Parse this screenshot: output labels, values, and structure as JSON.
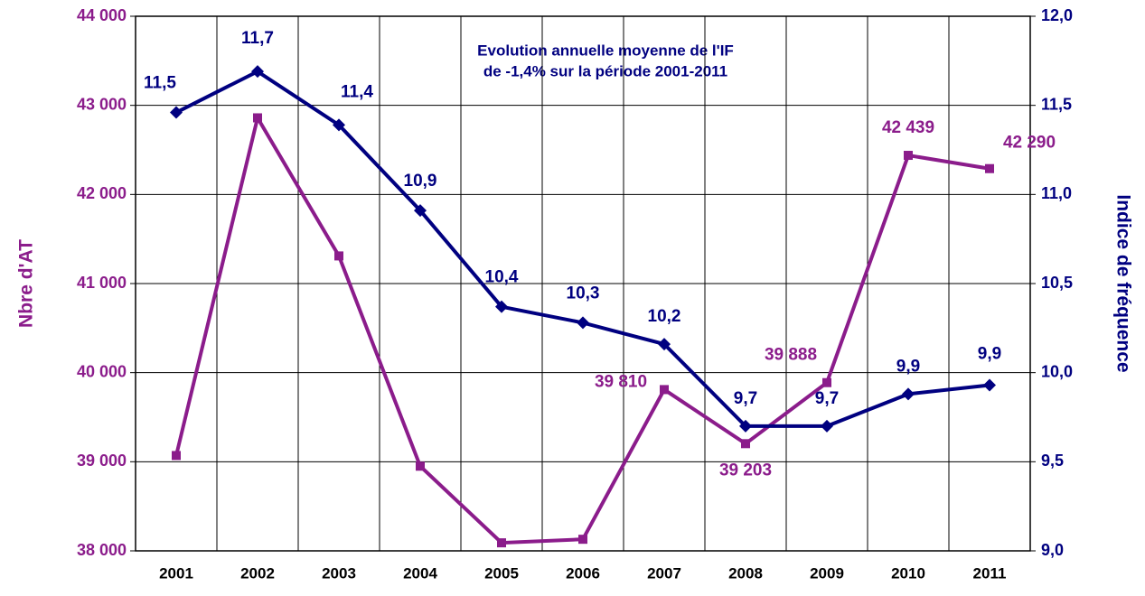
{
  "chart_data": {
    "type": "line",
    "annotation": [
      "Evolution annuelle moyenne de l'IF",
      "de -1,4% sur la période 2001-2011"
    ],
    "ylabel": "Nbre d'AT",
    "y2label": "Indice de fréquence",
    "categories": [
      "2001",
      "2002",
      "2003",
      "2004",
      "2005",
      "2006",
      "2007",
      "2008",
      "2009",
      "2010",
      "2011"
    ],
    "ylim": [
      38000,
      44000
    ],
    "yticks": [
      {
        "value": 38000,
        "label": "38 000"
      },
      {
        "value": 39000,
        "label": "39 000"
      },
      {
        "value": 40000,
        "label": "40 000"
      },
      {
        "value": 41000,
        "label": "41 000"
      },
      {
        "value": 42000,
        "label": "42 000"
      },
      {
        "value": 43000,
        "label": "43 000"
      },
      {
        "value": 44000,
        "label": "44 000"
      }
    ],
    "y2lim": [
      9,
      12
    ],
    "y2ticks": [
      {
        "value": 9,
        "label": "9,0"
      },
      {
        "value": 9.5,
        "label": "9,5"
      },
      {
        "value": 10,
        "label": "10,0"
      },
      {
        "value": 10.5,
        "label": "10,5"
      },
      {
        "value": 11,
        "label": "11,0"
      },
      {
        "value": 11.5,
        "label": "11,5"
      },
      {
        "value": 12,
        "label": "12,0"
      }
    ],
    "grid": true,
    "series": [
      {
        "color": "#8b1c8b",
        "marker": "square",
        "values": [
          39070,
          42860,
          41310,
          38950,
          38090,
          38130,
          39810,
          39203,
          39888,
          42439,
          42290
        ],
        "value_labels": [
          null,
          null,
          null,
          null,
          null,
          null,
          "39 810",
          "39 203",
          "39 888",
          "42 439",
          "42 290"
        ]
      },
      {
        "color": "#000080",
        "marker": "diamond",
        "axis": "y2",
        "values": [
          11.46,
          11.69,
          11.39,
          10.91,
          10.37,
          10.28,
          10.16,
          9.7,
          9.7,
          9.88,
          9.93
        ],
        "value_labels": [
          "11,5",
          "11,7",
          "11,4",
          "10,9",
          "10,4",
          "10,3",
          "10,2",
          "9,7",
          "9,7",
          "9,9",
          "9,9"
        ]
      }
    ]
  }
}
